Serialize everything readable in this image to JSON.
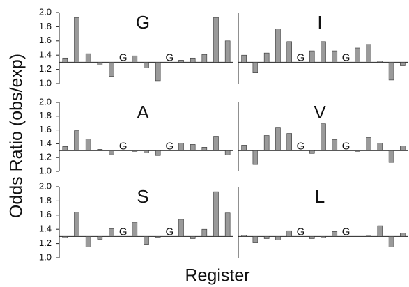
{
  "figure": {
    "xlabel": "Register",
    "ylabel": "Odds Ratio (obs/exp)"
  },
  "chart_data": [
    {
      "type": "bar",
      "title": "G",
      "base": 1.3,
      "color": "#9a9a9a",
      "categories": [
        null,
        null,
        null,
        null,
        null,
        "G",
        null,
        null,
        null,
        "G",
        null,
        null,
        null,
        null,
        null
      ],
      "values": [
        1.36,
        1.93,
        1.42,
        1.26,
        1.1,
        null,
        1.39,
        1.22,
        1.04,
        null,
        1.33,
        1.36,
        1.41,
        1.93,
        1.6
      ],
      "ylim": [
        1.0,
        2.0
      ],
      "yticks": [
        {
          "value": 1.0,
          "label": "1.0"
        },
        1.2,
        1.4,
        1.6,
        1.8,
        {
          "value": 2.0,
          "label": "2.0"
        }
      ]
    },
    {
      "type": "bar",
      "title": "I",
      "base": 1.3,
      "color": "#9a9a9a",
      "categories": [
        null,
        null,
        null,
        null,
        null,
        "G",
        null,
        null,
        null,
        "G",
        null,
        null,
        null,
        null,
        null
      ],
      "values": [
        1.4,
        1.15,
        1.43,
        1.77,
        1.59,
        null,
        1.46,
        1.59,
        1.46,
        null,
        1.5,
        1.55,
        1.32,
        1.05,
        1.25
      ],
      "ylim": [
        1.0,
        2.0
      ]
    },
    {
      "type": "bar",
      "title": "A",
      "base": 1.3,
      "color": "#9a9a9a",
      "categories": [
        null,
        null,
        null,
        null,
        null,
        "G",
        null,
        null,
        null,
        "G",
        null,
        null,
        null,
        null,
        null
      ],
      "values": [
        1.36,
        1.59,
        1.47,
        1.32,
        1.25,
        null,
        1.29,
        1.27,
        1.23,
        null,
        1.41,
        1.39,
        1.35,
        1.51,
        1.24
      ],
      "ylim": [
        1.0,
        2.0
      ],
      "yticks": [
        {
          "value": 1.0,
          "label": "1.0"
        },
        1.2,
        1.4,
        1.6,
        1.8,
        {
          "value": 2.0,
          "label": "2.0"
        }
      ]
    },
    {
      "type": "bar",
      "title": "V",
      "base": 1.3,
      "color": "#9a9a9a",
      "categories": [
        null,
        null,
        null,
        null,
        null,
        "G",
        null,
        null,
        null,
        "G",
        null,
        null,
        null,
        null,
        null
      ],
      "values": [
        1.38,
        1.1,
        1.52,
        1.63,
        1.55,
        null,
        1.26,
        1.69,
        1.46,
        null,
        1.29,
        1.49,
        1.41,
        1.13,
        1.37
      ],
      "ylim": [
        1.0,
        2.0
      ]
    },
    {
      "type": "bar",
      "title": "S",
      "base": 1.3,
      "color": "#9a9a9a",
      "categories": [
        null,
        null,
        null,
        null,
        null,
        "G",
        null,
        null,
        null,
        "G",
        null,
        null,
        null,
        null,
        null
      ],
      "values": [
        1.28,
        1.64,
        1.15,
        1.26,
        1.41,
        null,
        1.5,
        1.19,
        1.29,
        null,
        1.54,
        1.27,
        1.4,
        1.93,
        1.63
      ],
      "ylim": [
        1.0,
        2.0
      ],
      "yticks": [
        {
          "value": 1.0,
          "label": "1.0"
        },
        1.2,
        1.4,
        1.6,
        1.8,
        {
          "value": 2.0,
          "label": "2.0"
        }
      ]
    },
    {
      "type": "bar",
      "title": "L",
      "base": 1.3,
      "color": "#9a9a9a",
      "categories": [
        null,
        null,
        null,
        null,
        null,
        "G",
        null,
        null,
        null,
        "G",
        null,
        null,
        null,
        null,
        null
      ],
      "values": [
        1.32,
        1.21,
        1.27,
        1.25,
        1.38,
        null,
        1.27,
        1.28,
        1.37,
        null,
        1.3,
        1.32,
        1.45,
        1.15,
        1.35
      ],
      "ylim": [
        1.0,
        2.0
      ]
    }
  ]
}
